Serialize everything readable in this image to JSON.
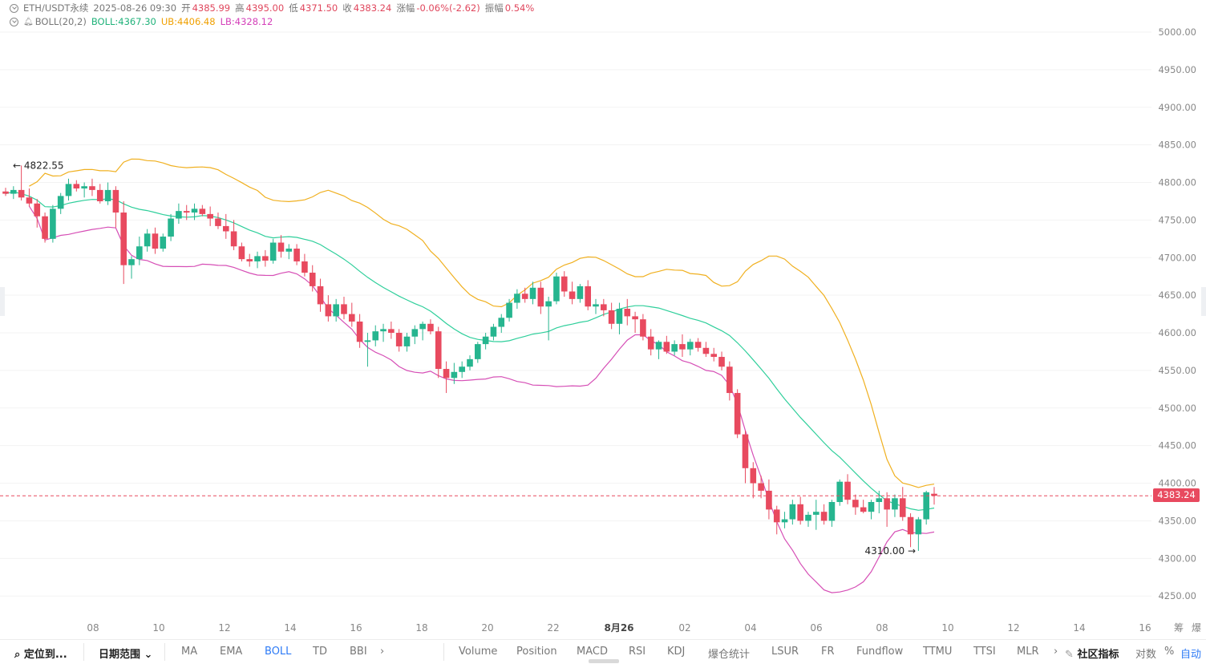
{
  "header": {
    "symbol": "ETH/USDT永续",
    "datetime": "2025-08-26 09:30",
    "open_label": "开",
    "open": "4385.99",
    "high_label": "高",
    "high": "4395.00",
    "low_label": "低",
    "low": "4371.50",
    "close_label": "收",
    "close": "4383.24",
    "change_label": "涨幅",
    "change": "-0.06%(-2.62)",
    "amplitude_label": "振幅",
    "amplitude": "0.54%"
  },
  "indicator": {
    "name": "BOLL(20,2)",
    "boll": "BOLL:4367.30",
    "ub": "UB:4406.48",
    "lb": "LB:4328.12"
  },
  "price_tag": "4383.24",
  "colors": {
    "up": "#26b58f",
    "down": "#e84a5f",
    "mid_band": "#2fcf9b",
    "upper_band": "#f0b020",
    "lower_band": "#d64fb6",
    "active": "#2e7bf6"
  },
  "toolbar": {
    "locate": "定位到...",
    "date_range": "日期范围",
    "left_items": [
      "MA",
      "EMA",
      "BOLL",
      "TD",
      "BBI"
    ],
    "active_item": "BOLL",
    "right_items": [
      "Volume",
      "Position",
      "MACD",
      "RSI",
      "KDJ",
      "爆仓统计",
      "LSUR",
      "FR",
      "Fundflow",
      "TTMU",
      "TTSI",
      "MLR"
    ],
    "community": "社区指标",
    "log": "对数",
    "percent": "%",
    "auto": "自动"
  },
  "chart_data": {
    "type": "candlestick",
    "title": "ETH/USDT永续",
    "ylim": [
      4230,
      5020
    ],
    "y_ticks": [
      "5000.00",
      "4950.00",
      "4900.00",
      "4850.00",
      "4800.00",
      "4750.00",
      "4700.00",
      "4650.00",
      "4600.00",
      "4550.00",
      "4500.00",
      "4450.00",
      "4400.00",
      "4350.00",
      "4300.00",
      "4250.00"
    ],
    "x_ticks": [
      "08",
      "10",
      "12",
      "14",
      "16",
      "18",
      "20",
      "22",
      "8月26",
      "02",
      "04",
      "06",
      "08",
      "10",
      "12",
      "14",
      "16"
    ],
    "x_axis_extra": [
      "筹",
      "爆"
    ],
    "high_marker": "4822.55",
    "low_marker": "4310.00",
    "current_price": 4383.24,
    "candles": [
      [
        4788,
        4793,
        4782,
        4785
      ],
      [
        4785,
        4795,
        4778,
        4790
      ],
      [
        4790,
        4822.55,
        4776,
        4780
      ],
      [
        4780,
        4792,
        4768,
        4772
      ],
      [
        4772,
        4778,
        4740,
        4755
      ],
      [
        4755,
        4760,
        4720,
        4725
      ],
      [
        4725,
        4770,
        4720,
        4765
      ],
      [
        4765,
        4786,
        4758,
        4782
      ],
      [
        4782,
        4805,
        4776,
        4798
      ],
      [
        4798,
        4803,
        4788,
        4792
      ],
      [
        4792,
        4800,
        4780,
        4795
      ],
      [
        4795,
        4805,
        4782,
        4790
      ],
      [
        4790,
        4798,
        4772,
        4775
      ],
      [
        4775,
        4800,
        4770,
        4790
      ],
      [
        4790,
        4795,
        4740,
        4760
      ],
      [
        4760,
        4775,
        4665,
        4690
      ],
      [
        4690,
        4702,
        4672,
        4698
      ],
      [
        4698,
        4728,
        4690,
        4715
      ],
      [
        4715,
        4738,
        4708,
        4732
      ],
      [
        4732,
        4740,
        4705,
        4712
      ],
      [
        4712,
        4732,
        4708,
        4728
      ],
      [
        4728,
        4758,
        4722,
        4752
      ],
      [
        4752,
        4772,
        4745,
        4762
      ],
      [
        4762,
        4770,
        4750,
        4760
      ],
      [
        4760,
        4772,
        4750,
        4765
      ],
      [
        4765,
        4770,
        4755,
        4758
      ],
      [
        4758,
        4768,
        4742,
        4752
      ],
      [
        4752,
        4760,
        4738,
        4742
      ],
      [
        4742,
        4758,
        4725,
        4735
      ],
      [
        4735,
        4750,
        4710,
        4715
      ],
      [
        4715,
        4720,
        4695,
        4698
      ],
      [
        4698,
        4705,
        4688,
        4695
      ],
      [
        4695,
        4708,
        4686,
        4702
      ],
      [
        4702,
        4710,
        4688,
        4696
      ],
      [
        4696,
        4725,
        4692,
        4720
      ],
      [
        4720,
        4730,
        4700,
        4708
      ],
      [
        4708,
        4718,
        4698,
        4712
      ],
      [
        4712,
        4718,
        4690,
        4695
      ],
      [
        4695,
        4705,
        4675,
        4680
      ],
      [
        4680,
        4690,
        4655,
        4662
      ],
      [
        4662,
        4672,
        4628,
        4638
      ],
      [
        4638,
        4650,
        4615,
        4622
      ],
      [
        4622,
        4645,
        4615,
        4638
      ],
      [
        4638,
        4648,
        4618,
        4625
      ],
      [
        4625,
        4640,
        4608,
        4615
      ],
      [
        4615,
        4625,
        4580,
        4588
      ],
      [
        4588,
        4600,
        4555,
        4590
      ],
      [
        4590,
        4610,
        4582,
        4602
      ],
      [
        4602,
        4612,
        4588,
        4605
      ],
      [
        4605,
        4615,
        4592,
        4600
      ],
      [
        4600,
        4605,
        4575,
        4582
      ],
      [
        4582,
        4600,
        4575,
        4595
      ],
      [
        4595,
        4610,
        4585,
        4605
      ],
      [
        4605,
        4615,
        4590,
        4612
      ],
      [
        4612,
        4618,
        4598,
        4602
      ],
      [
        4602,
        4608,
        4540,
        4552
      ],
      [
        4552,
        4562,
        4520,
        4540
      ],
      [
        4540,
        4560,
        4532,
        4548
      ],
      [
        4548,
        4562,
        4540,
        4555
      ],
      [
        4555,
        4570,
        4550,
        4565
      ],
      [
        4565,
        4588,
        4560,
        4585
      ],
      [
        4585,
        4600,
        4578,
        4595
      ],
      [
        4595,
        4612,
        4590,
        4608
      ],
      [
        4608,
        4625,
        4600,
        4620
      ],
      [
        4620,
        4645,
        4615,
        4640
      ],
      [
        4640,
        4658,
        4632,
        4652
      ],
      [
        4652,
        4660,
        4640,
        4645
      ],
      [
        4645,
        4668,
        4638,
        4660
      ],
      [
        4660,
        4668,
        4625,
        4635
      ],
      [
        4635,
        4648,
        4590,
        4642
      ],
      [
        4642,
        4680,
        4638,
        4675
      ],
      [
        4675,
        4682,
        4648,
        4655
      ],
      [
        4655,
        4668,
        4638,
        4645
      ],
      [
        4645,
        4665,
        4640,
        4662
      ],
      [
        4662,
        4670,
        4630,
        4635
      ],
      [
        4635,
        4645,
        4625,
        4638
      ],
      [
        4638,
        4645,
        4622,
        4630
      ],
      [
        4630,
        4640,
        4605,
        4612
      ],
      [
        4612,
        4640,
        4598,
        4632
      ],
      [
        4632,
        4645,
        4610,
        4622
      ],
      [
        4622,
        4628,
        4600,
        4618
      ],
      [
        4618,
        4625,
        4590,
        4595
      ],
      [
        4595,
        4605,
        4570,
        4578
      ],
      [
        4578,
        4590,
        4565,
        4588
      ],
      [
        4588,
        4596,
        4572,
        4575
      ],
      [
        4575,
        4590,
        4570,
        4585
      ],
      [
        4585,
        4598,
        4568,
        4578
      ],
      [
        4578,
        4592,
        4570,
        4588
      ],
      [
        4588,
        4593,
        4575,
        4580
      ],
      [
        4580,
        4588,
        4568,
        4572
      ],
      [
        4572,
        4580,
        4562,
        4568
      ],
      [
        4568,
        4575,
        4550,
        4555
      ],
      [
        4555,
        4562,
        4510,
        4520
      ],
      [
        4520,
        4525,
        4460,
        4465
      ],
      [
        4465,
        4470,
        4400,
        4420
      ],
      [
        4420,
        4428,
        4380,
        4400
      ],
      [
        4400,
        4410,
        4380,
        4390
      ],
      [
        4390,
        4405,
        4352,
        4365
      ],
      [
        4365,
        4370,
        4332,
        4348
      ],
      [
        4348,
        4362,
        4340,
        4352
      ],
      [
        4352,
        4378,
        4345,
        4372
      ],
      [
        4372,
        4382,
        4345,
        4350
      ],
      [
        4350,
        4362,
        4342,
        4358
      ],
      [
        4358,
        4378,
        4338,
        4362
      ],
      [
        4362,
        4372,
        4345,
        4350
      ],
      [
        4350,
        4378,
        4342,
        4375
      ],
      [
        4375,
        4405,
        4370,
        4402
      ],
      [
        4402,
        4412,
        4372,
        4378
      ],
      [
        4378,
        4385,
        4358,
        4368
      ],
      [
        4368,
        4378,
        4360,
        4362
      ],
      [
        4362,
        4378,
        4352,
        4375
      ],
      [
        4375,
        4390,
        4360,
        4380
      ],
      [
        4380,
        4388,
        4342,
        4365
      ],
      [
        4365,
        4385,
        4355,
        4380
      ],
      [
        4380,
        4395,
        4350,
        4355
      ],
      [
        4355,
        4360,
        4315,
        4332
      ],
      [
        4332,
        4355,
        4310,
        4352
      ],
      [
        4352,
        4390,
        4345,
        4388
      ],
      [
        4385.99,
        4395,
        4371.5,
        4383.24
      ]
    ]
  }
}
